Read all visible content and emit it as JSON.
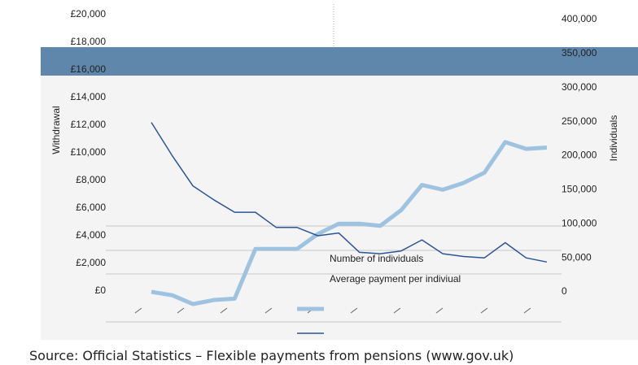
{
  "chart_data": {
    "type": "line",
    "y_label": "Withdrawal",
    "y2_label": "Individuals",
    "categories": [
      null,
      null,
      null,
      null,
      null,
      null,
      null,
      null,
      null,
      null,
      null,
      null,
      null,
      null,
      null,
      null,
      null,
      null,
      null,
      null
    ],
    "series": [
      {
        "name": "Number of individuals",
        "color": "#9dc3e0",
        "axis": "y2",
        "values": [
          0,
          -5000,
          -18000,
          -12000,
          -10000,
          63000,
          63000,
          63000,
          85000,
          100000,
          100000,
          97000,
          120000,
          157000,
          150000,
          160000,
          175000,
          220000,
          210000,
          212000
        ]
      },
      {
        "name": "Average payment per indiviual",
        "color": "#2a5599",
        "values": [
          12200,
          9800,
          7600,
          6600,
          5700,
          5700,
          4600,
          4600,
          4000,
          4200,
          2800,
          2700,
          2900,
          3700,
          2700,
          2500,
          2400,
          3500,
          2400,
          2100
        ]
      }
    ],
    "ylim": [
      0,
      20000
    ],
    "yticks": [
      {
        "value": 0,
        "label": "£0"
      },
      {
        "value": 2000,
        "label": "£2,000"
      },
      {
        "value": 4000,
        "label": "£4,000"
      },
      {
        "value": 6000,
        "label": "£6,000"
      },
      {
        "value": 8000,
        "label": "£8,000"
      },
      {
        "value": 10000,
        "label": "£10,000"
      },
      {
        "value": 12000,
        "label": "£12,000"
      },
      {
        "value": 14000,
        "label": "£14,000"
      },
      {
        "value": 16000,
        "label": "£16,000"
      },
      {
        "value": 18000,
        "label": "£18,000"
      },
      {
        "value": 20000,
        "label": "£20,000"
      }
    ],
    "y2lim": [
      0,
      400000
    ],
    "y2ticks": [
      0,
      {
        "value": 50000,
        "label": "50,000"
      },
      {
        "value": 100000,
        "label": "100,000"
      },
      {
        "value": 150000,
        "label": "150,000"
      },
      {
        "value": 200000,
        "label": "200,000"
      },
      {
        "value": 250000,
        "label": "250,000"
      },
      {
        "value": 300000,
        "label": "300,000"
      },
      {
        "value": 350000,
        "label": "350,000"
      },
      {
        "value": 400000,
        "label": "400,000"
      }
    ]
  },
  "source": "Source: Official Statistics – Flexible payments from pensions (www.gov.uk)"
}
